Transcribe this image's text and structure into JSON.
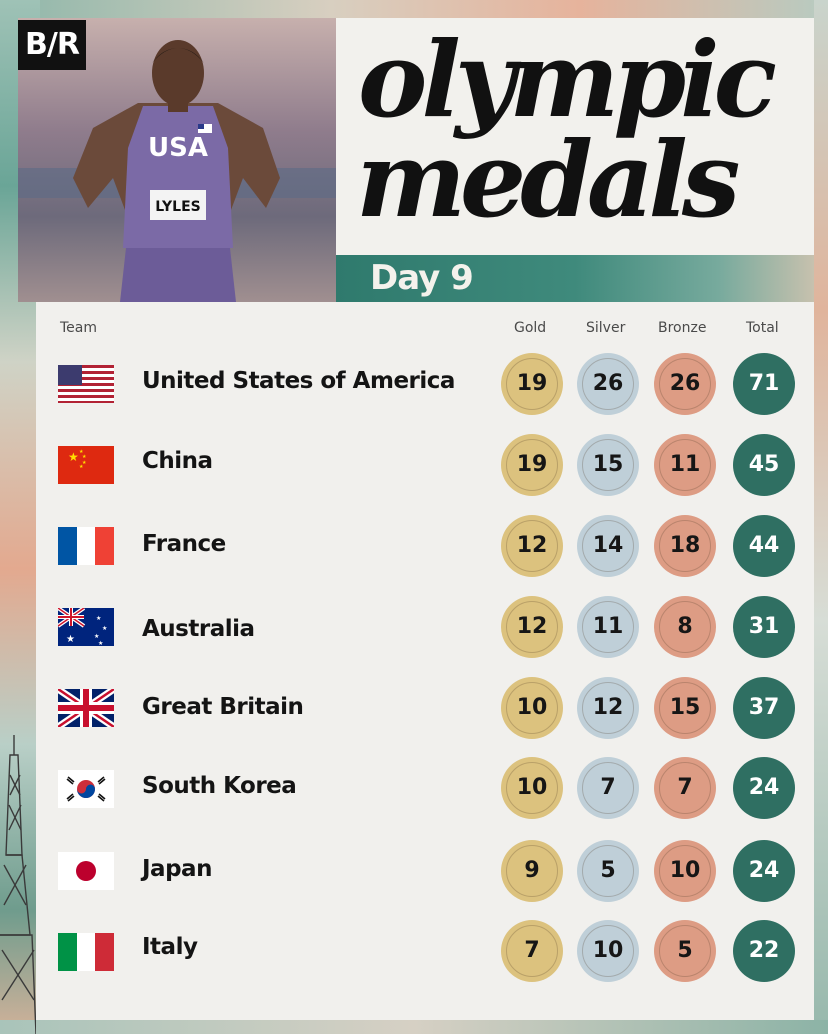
{
  "brand": {
    "logo_text": "B/R"
  },
  "photo": {
    "jersey_text": "USA",
    "bib_text": "LYLES"
  },
  "title": {
    "line1": "olympic",
    "line2": "medals",
    "day": "Day 9"
  },
  "headers": {
    "team": "Team",
    "gold": "Gold",
    "silver": "Silver",
    "bronze": "Bronze",
    "total": "Total"
  },
  "rows": [
    {
      "country": "United States of America",
      "flag": "usa-flag",
      "gold": "19",
      "silver": "26",
      "bronze": "26",
      "total": "71"
    },
    {
      "country": "China",
      "flag": "china-flag",
      "gold": "19",
      "silver": "15",
      "bronze": "11",
      "total": "45"
    },
    {
      "country": "France",
      "flag": "france-flag",
      "gold": "12",
      "silver": "14",
      "bronze": "18",
      "total": "44"
    },
    {
      "country": "Australia",
      "flag": "australia-flag",
      "gold": "12",
      "silver": "11",
      "bronze": "8",
      "total": "31"
    },
    {
      "country": "Great Britain",
      "flag": "great-britain-flag",
      "gold": "10",
      "silver": "12",
      "bronze": "15",
      "total": "37"
    },
    {
      "country": "South Korea",
      "flag": "south-korea-flag",
      "gold": "10",
      "silver": "7",
      "bronze": "7",
      "total": "24"
    },
    {
      "country": "Japan",
      "flag": "japan-flag",
      "gold": "9",
      "silver": "5",
      "bronze": "10",
      "total": "24"
    },
    {
      "country": "Italy",
      "flag": "italy-flag",
      "gold": "7",
      "silver": "10",
      "bronze": "5",
      "total": "22"
    }
  ],
  "colors": {
    "gold": "#dcc27e",
    "silver": "#bfcfd8",
    "bronze": "#dd9c84",
    "total": "#2f6f62",
    "band": "#2f7a6d"
  }
}
